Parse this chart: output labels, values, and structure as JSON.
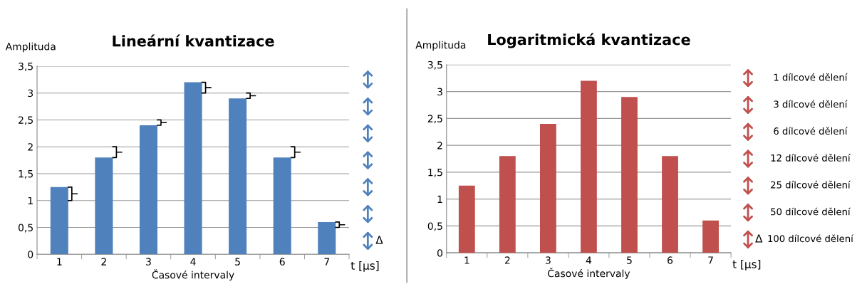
{
  "chart_data": [
    {
      "type": "bar",
      "title": "Lineární kvantizace",
      "ylabel": "Amplituda",
      "xlabel": "Časové intervaly",
      "categories": [
        "1",
        "2",
        "3",
        "4",
        "5",
        "6",
        "7"
      ],
      "series": [
        {
          "color": "#4f81bd",
          "values": [
            1.25,
            1.8,
            2.4,
            3.2,
            2.9,
            1.8,
            0.6
          ]
        }
      ],
      "ylim": [
        0,
        3.5
      ],
      "yticks": [
        0,
        {
          "value": 0.5,
          "label": "0,5"
        },
        1,
        {
          "value": 1.5,
          "label": "1,5"
        },
        2,
        {
          "value": 2.5,
          "label": "2,5"
        },
        3,
        {
          "value": 3.5,
          "label": "3,5"
        }
      ],
      "grid": "y",
      "annotations": [
        "Δ",
        "t [µs]"
      ]
    },
    {
      "type": "bar",
      "title": "Logaritmická kvantizace",
      "ylabel": "Amplituda",
      "xlabel": "Časové intervaly",
      "categories": [
        "1",
        "2",
        "3",
        "4",
        "5",
        "6",
        "7"
      ],
      "series": [
        {
          "color": "#c0504d",
          "values": [
            1.25,
            1.8,
            2.4,
            3.2,
            2.9,
            1.8,
            0.6
          ]
        }
      ],
      "ylim": [
        0,
        3.5
      ],
      "yticks": [
        0,
        {
          "value": 0.5,
          "label": "0,5"
        },
        1,
        {
          "value": 1.5,
          "label": "1,5"
        },
        2,
        {
          "value": 2.5,
          "label": "2,5"
        },
        3,
        {
          "value": 3.5,
          "label": "3,5"
        }
      ],
      "grid": "y",
      "annotations": [
        "1 dílcové dělení",
        "3 dílcové dělení",
        "6 dílcové dělení",
        "12 dílcové dělení",
        "25 dílcové dělení",
        "50 dílcové dělení",
        "100 dílcové dělení",
        "Δ",
        "t [µs]"
      ]
    }
  ]
}
